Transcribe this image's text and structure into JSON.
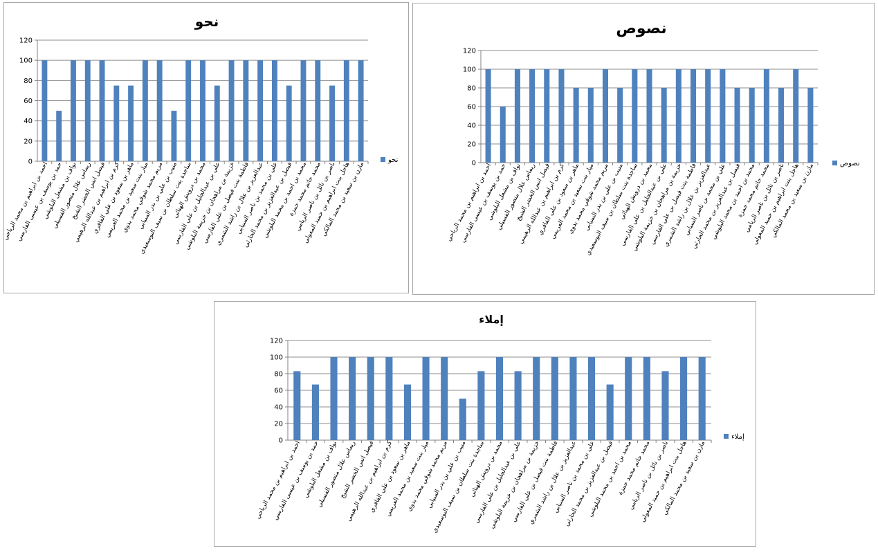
{
  "chart_data": [
    {
      "type": "bar",
      "title": "نحو",
      "series": [
        {
          "name": "نحو",
          "values": [
            100,
            50,
            100,
            100,
            100,
            75,
            75,
            100,
            100,
            50,
            100,
            100,
            75,
            100,
            100,
            100,
            100,
            75,
            100,
            100,
            75,
            100,
            100
          ]
        }
      ],
      "categories": [
        "احمد بن ابراهيم بن محمد الرياحي",
        "حمد بن يوسف بن عيسى الفارسي",
        "نواف بن مشعل البلوشي",
        "ريماس علال منصور الفسيلي",
        "فيصل انس الخضر الشيخ",
        "كرم بن ابراهيم بن عبدالله الرهيمي",
        "ماهر بن سعود بن علي الفافري",
        "ميار بنت سعيد بن محمد العريمي",
        "مريم محمد شوقي محمد بدوي",
        "منيب بن علي بن بدر السيابي",
        "ساجدة بنت سلطان بن سيف البوسعيدي",
        "محمد بن درويش الهنائي",
        "علي بن عبدالجليل بن علي الفارسي",
        "خزيمة بن مراهجان بن خزيمة البلوشي",
        "فاطمة بنت فيصل بن علي الفارسي",
        "عبدالعزيز بن علال بن راشد الشمري",
        "علي بن محمد بن ناصر السيابي",
        "فيصل بن عبدالعزيز بن محمد الحارثي",
        "محمد بن احمد بن محمد البلوشي",
        "محمد حاتم محمد حمزة",
        "ناصر بن نائل بن ناصر الريامي",
        "هاجل بنت ابراهيم بن حميد المعولي",
        "مازن بن سعيد بن محمد المالكي"
      ],
      "ylim": [
        0,
        120
      ],
      "yticks": [
        "0",
        "20",
        "40",
        "60",
        "80",
        "100",
        "120"
      ],
      "legend_position": "right",
      "grid": true
    },
    {
      "type": "bar",
      "title": "نصوص",
      "series": [
        {
          "name": "نصوص",
          "values": [
            100,
            60,
            100,
            100,
            100,
            100,
            80,
            80,
            100,
            80,
            100,
            100,
            80,
            100,
            100,
            100,
            100,
            80,
            80,
            100,
            80,
            100,
            80
          ]
        }
      ],
      "categories": [
        "احمد بن ابراهيم بن محمد الرياحي",
        "حمد بن يوسف بن عيسى الفارسي",
        "نواف بن مشعل البلوشي",
        "ريماس علال منصور الفسيلي",
        "فيصل انس الخضر الشيخ",
        "كرم بن ابراهيم بن عبدالله الرهيمي",
        "ماهر بن سعود بن علي الفافري",
        "ميار بنت سعيد بن محمد العريمي",
        "مريم محمد شوقي محمد بدوي",
        "منيب بن علي بن بدر السيابي",
        "ساجدة بنت سلطان بن سيف البوسعيدي",
        "محمد بن درويش الهنائي",
        "علي بن عبدالجليل بن علي الفارسي",
        "خزيمة بن مراهجان بن خزيمة البلوشي",
        "فاطمة بنت فيصل بن علي الفارسي",
        "عبدالعزيز بن علال بن راشد الشمري",
        "علي بن محمد بن ناصر السيابي",
        "فيصل بن عبدالعزيز بن محمد الحارثي",
        "محمد بن احمد بن محمد البلوشي",
        "محمد حاتم محمد حمزة",
        "ناصر بن نائل بن ناصر الريامي",
        "هاجل بنت ابراهيم بن حميد المعولي",
        "مازن بن سعيد بن محمد المالكي"
      ],
      "ylim": [
        0,
        120
      ],
      "yticks": [
        "0",
        "20",
        "40",
        "60",
        "80",
        "100",
        "120"
      ],
      "legend_position": "right",
      "grid": true
    },
    {
      "type": "bar",
      "title": "إملاء",
      "series": [
        {
          "name": "إملاء",
          "values": [
            83,
            67,
            100,
            100,
            100,
            100,
            67,
            100,
            100,
            50,
            83,
            100,
            83,
            100,
            100,
            100,
            100,
            67,
            100,
            100,
            83,
            100,
            100
          ]
        }
      ],
      "categories": [
        "احمد بن ابراهيم بن محمد الرياحي",
        "حمد بن يوسف بن عيسى الفارسي",
        "نواف بن مشعل البلوشي",
        "ريماس علال منصور الفسيلي",
        "فيصل انس الخضر الشيخ",
        "كرم بن ابراهيم بن عبدالله الرهيمي",
        "ماهر بن سعود بن علي الفافري",
        "ميار بنت سعيد بن محمد العريمي",
        "مريم محمد شوقي محمد بدوي",
        "منيب بن علي بن بدر السيابي",
        "ساجدة بنت سلطان بن سيف البوسعيدي",
        "محمد بن درويش الهنائي",
        "علي بن عبدالجليل بن علي الفارسي",
        "خزيمة بن مراهجان بن خزيمة البلوشي",
        "فاطمة بنت فيصل بن علي الفارسي",
        "عبدالعزيز بن علال بن راشد الشمري",
        "علي بن محمد بن ناصر السيابي",
        "فيصل بن عبدالعزيز بن محمد الحارثي",
        "محمد بن احمد بن محمد البلوشي",
        "محمد حاتم محمد حمزة",
        "ناصر بن نائل بن ناصر الريامي",
        "هاجل بنت ابراهيم بن حميد المعولي",
        "مازن بن سعيد بن محمد المالكي"
      ],
      "ylim": [
        0,
        120
      ],
      "yticks": [
        "0",
        "20",
        "40",
        "60",
        "80",
        "100",
        "120"
      ],
      "legend_position": "right",
      "grid": true
    }
  ],
  "colors": {
    "bar": "#4f81bd",
    "grid": "#8c8c8c",
    "axis": "#808080"
  }
}
